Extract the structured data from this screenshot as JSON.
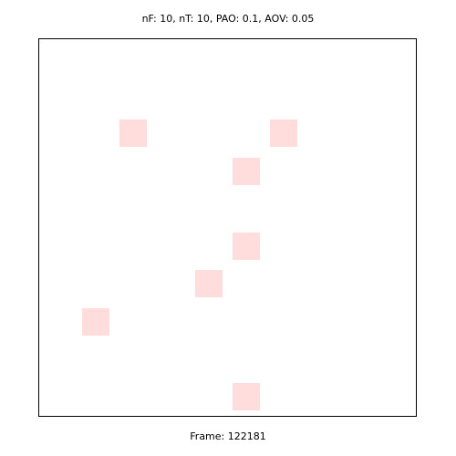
{
  "header": {
    "text": "nF: 10, nT: 10, PAO: 0.1, AOV: 0.05"
  },
  "footer": {
    "text": "Frame: 122181"
  },
  "grid": {
    "columns": 10,
    "rows": 10,
    "cell_color": "#ffdddd",
    "marked_cells": [
      {
        "col": 2,
        "row": 2
      },
      {
        "col": 6,
        "row": 2
      },
      {
        "col": 5,
        "row": 3
      },
      {
        "col": 5,
        "row": 5
      },
      {
        "col": 4,
        "row": 6
      },
      {
        "col": 1,
        "row": 7
      },
      {
        "col": 5,
        "row": 9
      }
    ]
  }
}
